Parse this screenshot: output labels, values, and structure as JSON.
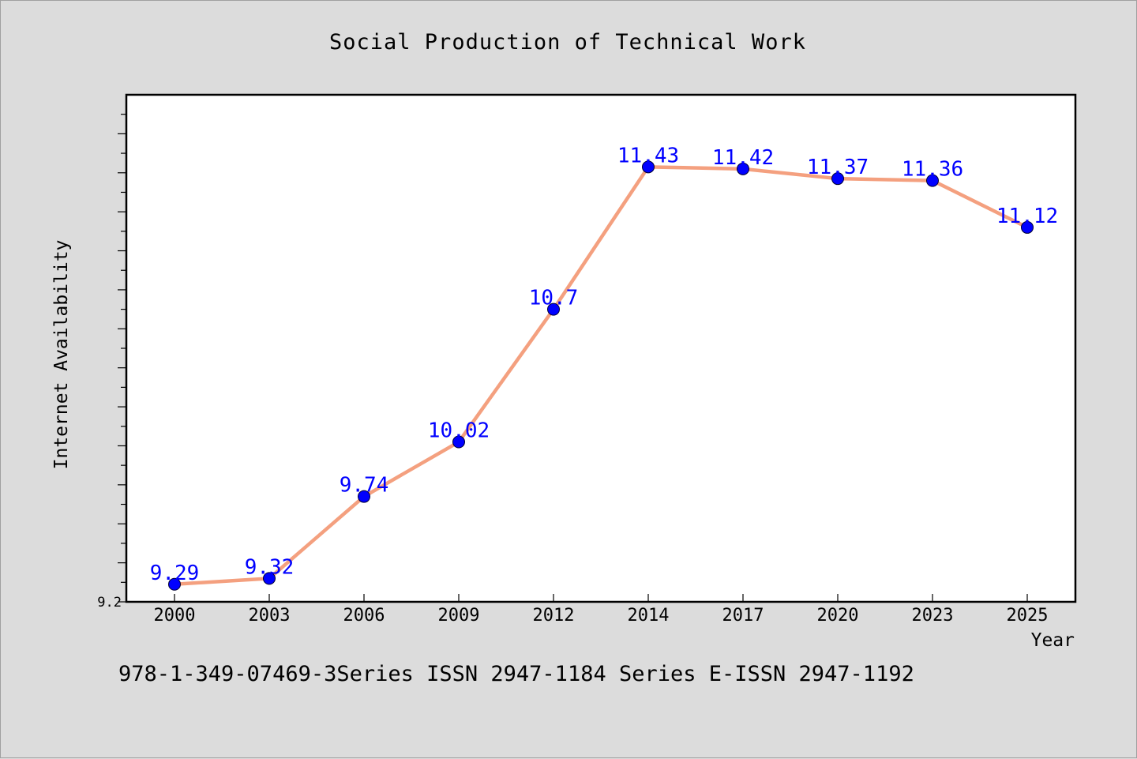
{
  "chart_data": {
    "type": "line",
    "title": "Social Production of Technical Work",
    "xlabel": "Year",
    "ylabel": "Internet Availability",
    "categories": [
      "2000",
      "2003",
      "2006",
      "2009",
      "2012",
      "2014",
      "2017",
      "2020",
      "2023",
      "2025"
    ],
    "series": [
      {
        "values": [
          9.29,
          9.32,
          9.74,
          10.02,
          10.7,
          11.43,
          11.42,
          11.37,
          11.36,
          11.12
        ],
        "data_labels": [
          "9.29",
          "9.32",
          "9.74",
          "10.02",
          "10.7",
          "11.43",
          "11.42",
          "11.37",
          "11.36",
          "11.12"
        ],
        "line_color": "#f4a07f",
        "marker_color": "#0000ff"
      }
    ],
    "ylim": [
      9.2,
      11.8
    ],
    "y_tick_labels": [
      "9.2"
    ],
    "grid": false,
    "legend": "none"
  },
  "footer": {
    "text": "978-1-349-07469-3Series ISSN 2947-1184 Series E-ISSN 2947-1192"
  },
  "colors": {
    "page_background": "#dcdcdc",
    "plot_background": "#ffffff",
    "data_label": "#0000ff"
  }
}
